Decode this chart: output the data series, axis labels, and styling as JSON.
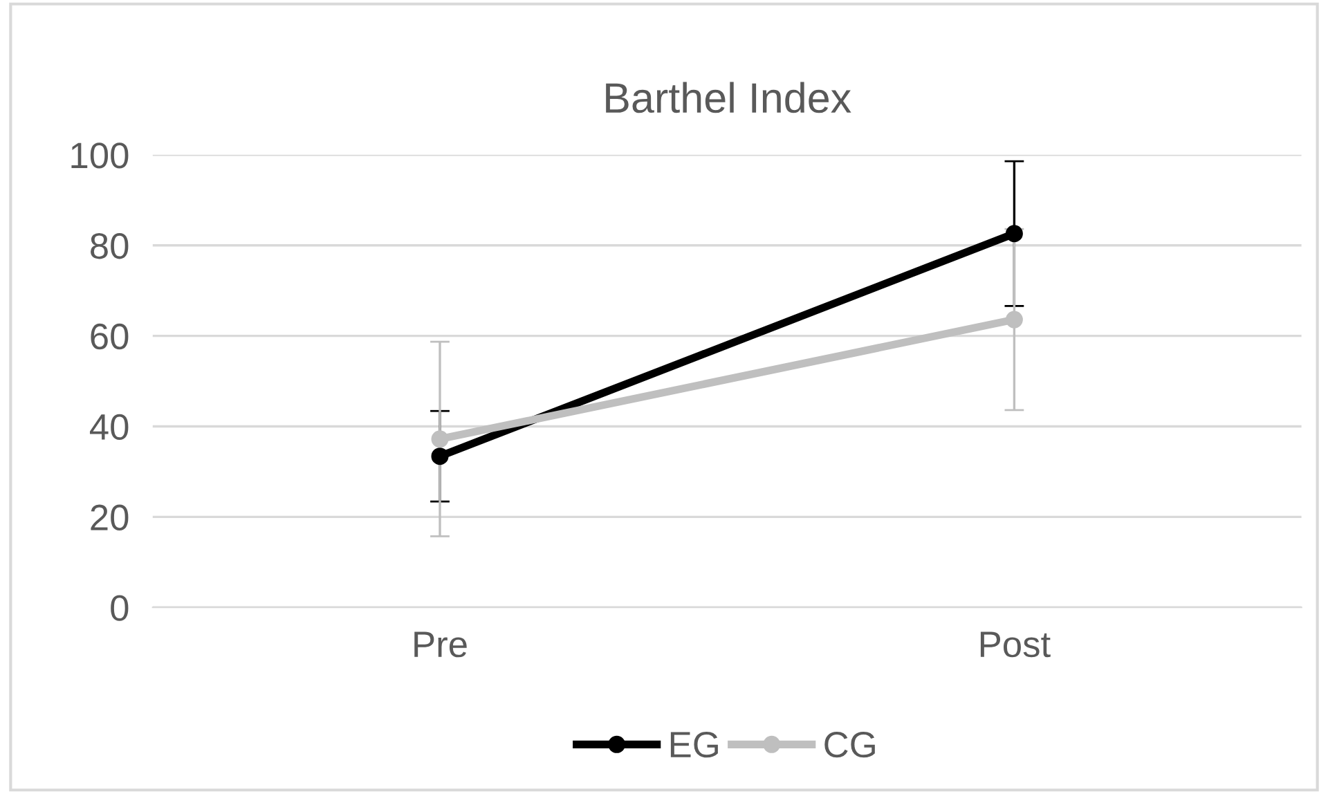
{
  "chart_data": {
    "type": "line",
    "title": "Barthel Index",
    "categories": [
      "Pre",
      "Post"
    ],
    "series": [
      {
        "name": "EG",
        "color": "#000000",
        "values": [
          33.4,
          82.6
        ],
        "errors": [
          10,
          16
        ]
      },
      {
        "name": "CG",
        "color": "#bfbfbf",
        "values": [
          37.2,
          63.6
        ],
        "errors": [
          21.5,
          20
        ]
      }
    ],
    "ylim": [
      0,
      100
    ],
    "yticks": [
      0,
      20,
      40,
      60,
      80,
      100
    ],
    "grid": "y",
    "legend": "bottom",
    "marker": "circle",
    "line_style": "solid"
  }
}
